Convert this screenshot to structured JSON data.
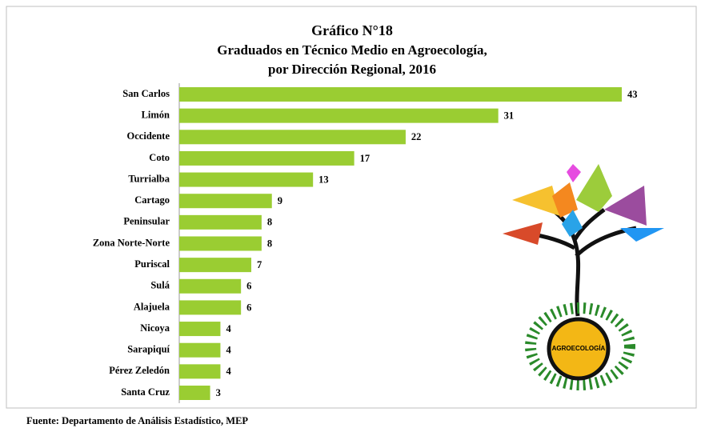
{
  "chart_data": {
    "type": "bar",
    "orientation": "horizontal",
    "title": "Gráfico N°18",
    "subtitle": [
      "Graduados en Técnico Medio en Agroecología,",
      "por Dirección Regional, 2016"
    ],
    "categories": [
      "San Carlos",
      "Limón",
      "Occidente",
      "Coto",
      "Turrialba",
      "Cartago",
      "Peninsular",
      "Zona Norte-Norte",
      "Puriscal",
      "Sulá",
      "Alajuela",
      "Nicoya",
      "Sarapiquí",
      "Pérez Zeledón",
      "Santa Cruz"
    ],
    "values": [
      43,
      31,
      22,
      17,
      13,
      9,
      8,
      8,
      7,
      6,
      6,
      4,
      4,
      4,
      3
    ],
    "color": "#9acd32",
    "logo_text": "AGROECOLOGÍA",
    "source": "Fuente: Departamento de Análisis Estadístico, MEP"
  }
}
